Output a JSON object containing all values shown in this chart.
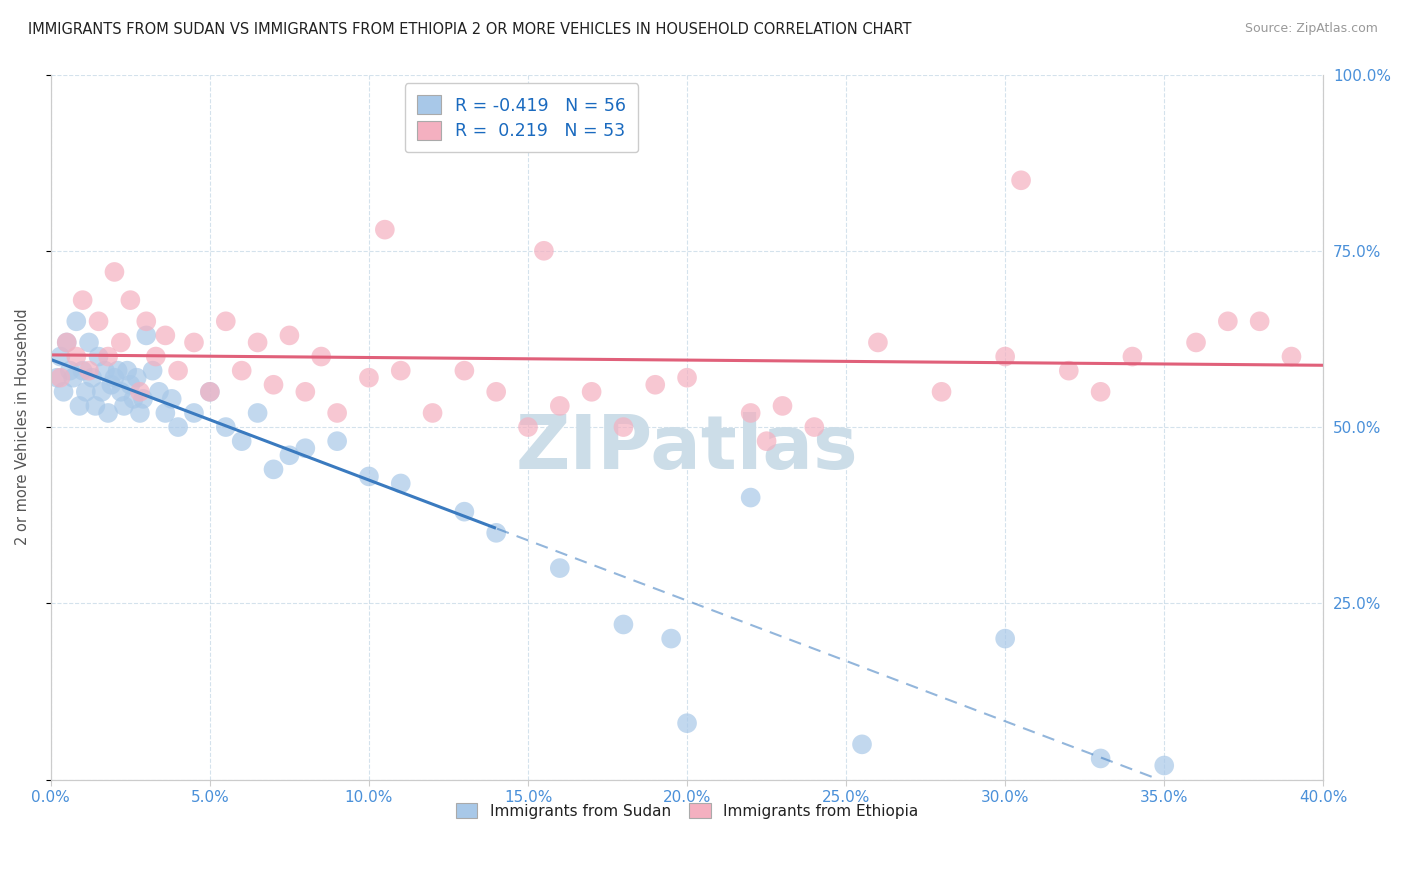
{
  "title": "IMMIGRANTS FROM SUDAN VS IMMIGRANTS FROM ETHIOPIA 2 OR MORE VEHICLES IN HOUSEHOLD CORRELATION CHART",
  "source": "Source: ZipAtlas.com",
  "ylabel_label": "2 or more Vehicles in Household",
  "legend_label_blue": "Immigrants from Sudan",
  "legend_label_pink": "Immigrants from Ethiopia",
  "r_sudan": "-0.419",
  "n_sudan": "56",
  "r_ethiopia": "0.219",
  "n_ethiopia": "53",
  "sudan_color": "#a8c8e8",
  "ethiopia_color": "#f4b0c0",
  "sudan_line_color": "#3a7abf",
  "ethiopia_line_color": "#e0607a",
  "xlim": [
    0.0,
    40.0
  ],
  "ylim": [
    0.0,
    100.0
  ],
  "sudan_x": [
    0.2,
    0.3,
    0.4,
    0.5,
    0.6,
    0.7,
    0.8,
    0.9,
    1.0,
    1.1,
    1.2,
    1.3,
    1.4,
    1.5,
    1.6,
    1.7,
    1.8,
    1.9,
    2.0,
    2.1,
    2.2,
    2.3,
    2.4,
    2.5,
    2.6,
    2.7,
    2.8,
    2.9,
    3.0,
    3.2,
    3.4,
    3.6,
    3.8,
    4.0,
    4.5,
    5.0,
    5.5,
    6.0,
    6.5,
    7.0,
    7.5,
    8.0,
    9.0,
    10.0,
    11.0,
    13.0,
    14.0,
    16.0,
    18.0,
    19.5,
    20.0,
    22.0,
    25.5,
    30.0,
    33.0,
    35.0
  ],
  "sudan_y": [
    57,
    60,
    55,
    62,
    58,
    57,
    65,
    53,
    58,
    55,
    62,
    57,
    53,
    60,
    55,
    58,
    52,
    56,
    57,
    58,
    55,
    53,
    58,
    56,
    54,
    57,
    52,
    54,
    63,
    58,
    55,
    52,
    54,
    50,
    52,
    55,
    50,
    48,
    52,
    44,
    46,
    47,
    48,
    43,
    42,
    38,
    35,
    30,
    22,
    20,
    8,
    40,
    5,
    20,
    3,
    2
  ],
  "ethiopia_x": [
    0.3,
    0.5,
    0.8,
    1.0,
    1.2,
    1.5,
    1.8,
    2.0,
    2.2,
    2.5,
    2.8,
    3.0,
    3.3,
    3.6,
    4.0,
    4.5,
    5.0,
    5.5,
    6.0,
    6.5,
    7.0,
    7.5,
    8.0,
    8.5,
    9.0,
    10.0,
    11.0,
    12.0,
    13.0,
    14.0,
    15.0,
    16.0,
    17.0,
    18.0,
    19.0,
    20.0,
    22.0,
    23.0,
    24.0,
    26.0,
    28.0,
    30.0,
    32.0,
    33.0,
    34.0,
    36.0,
    37.0,
    38.0,
    39.0,
    15.5,
    10.5,
    22.5,
    30.5
  ],
  "ethiopia_y": [
    57,
    62,
    60,
    68,
    58,
    65,
    60,
    72,
    62,
    68,
    55,
    65,
    60,
    63,
    58,
    62,
    55,
    65,
    58,
    62,
    56,
    63,
    55,
    60,
    52,
    57,
    58,
    52,
    58,
    55,
    50,
    53,
    55,
    50,
    56,
    57,
    52,
    53,
    50,
    62,
    55,
    60,
    58,
    55,
    60,
    62,
    65,
    65,
    60,
    75,
    78,
    48,
    85
  ]
}
